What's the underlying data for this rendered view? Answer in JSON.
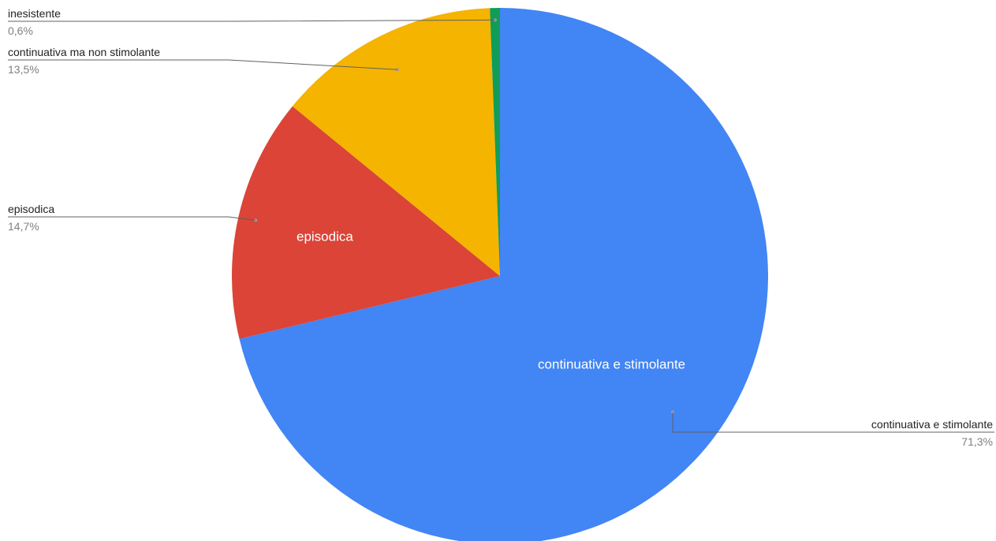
{
  "chart_data": {
    "type": "pie",
    "slices": [
      {
        "label": "continuativa e stimolante",
        "value": 71.3,
        "percent_label": "71,3%",
        "color": "#4285F4",
        "inner_label": "continuativa e stimolante"
      },
      {
        "label": "episodica",
        "value": 14.7,
        "percent_label": "14,7%",
        "color": "#DB4437",
        "inner_label": "episodica"
      },
      {
        "label": "continuativa ma non stimolante",
        "value": 13.5,
        "percent_label": "13,5%",
        "color": "#F4B400",
        "inner_label": ""
      },
      {
        "label": "inesistente",
        "value": 0.6,
        "percent_label": "0,6%",
        "color": "#0F9D58",
        "inner_label": ""
      }
    ],
    "start_angle": "12 o'clock",
    "direction": "clockwise",
    "legend": "none",
    "title": ""
  }
}
